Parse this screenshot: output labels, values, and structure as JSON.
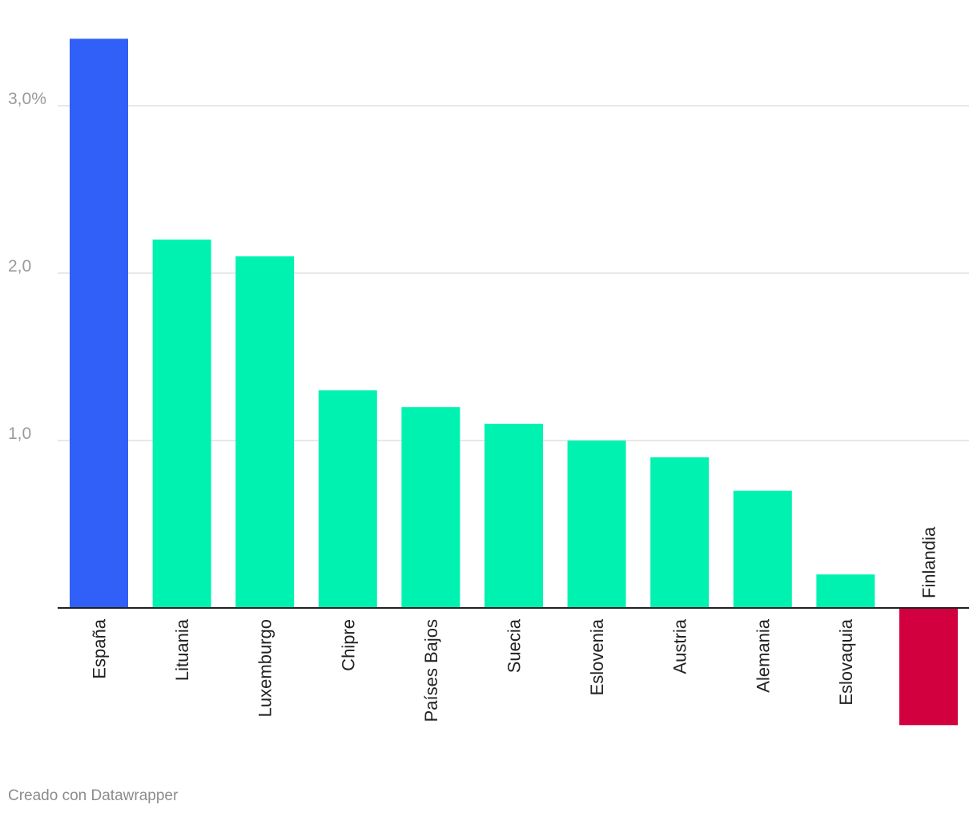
{
  "chart_data": {
    "type": "bar",
    "categories": [
      "España",
      "Lituania",
      "Luxemburgo",
      "Chipre",
      "Países Bajos",
      "Suecia",
      "Eslovenia",
      "Austria",
      "Alemania",
      "Eslovaquia",
      "Finlandia"
    ],
    "values": [
      3.4,
      2.2,
      2.1,
      1.3,
      1.2,
      1.1,
      1.0,
      0.9,
      0.7,
      0.2,
      -0.7
    ],
    "bar_colors": [
      "#3060f8",
      "#00f2b1",
      "#00f2b1",
      "#00f2b1",
      "#00f2b1",
      "#00f2b1",
      "#00f2b1",
      "#00f2b1",
      "#00f2b1",
      "#00f2b1",
      "#d3003f"
    ],
    "y_ticks": [
      {
        "value": 1,
        "label": "1,0"
      },
      {
        "value": 2,
        "label": "2,0"
      },
      {
        "value": 3,
        "label": "3,0%"
      }
    ],
    "ylim": [
      -1,
      3.4
    ],
    "grid": true,
    "legend": "none",
    "title": "",
    "xlabel": "",
    "ylabel": ""
  },
  "footer": {
    "credit": "Creado con Datawrapper"
  }
}
